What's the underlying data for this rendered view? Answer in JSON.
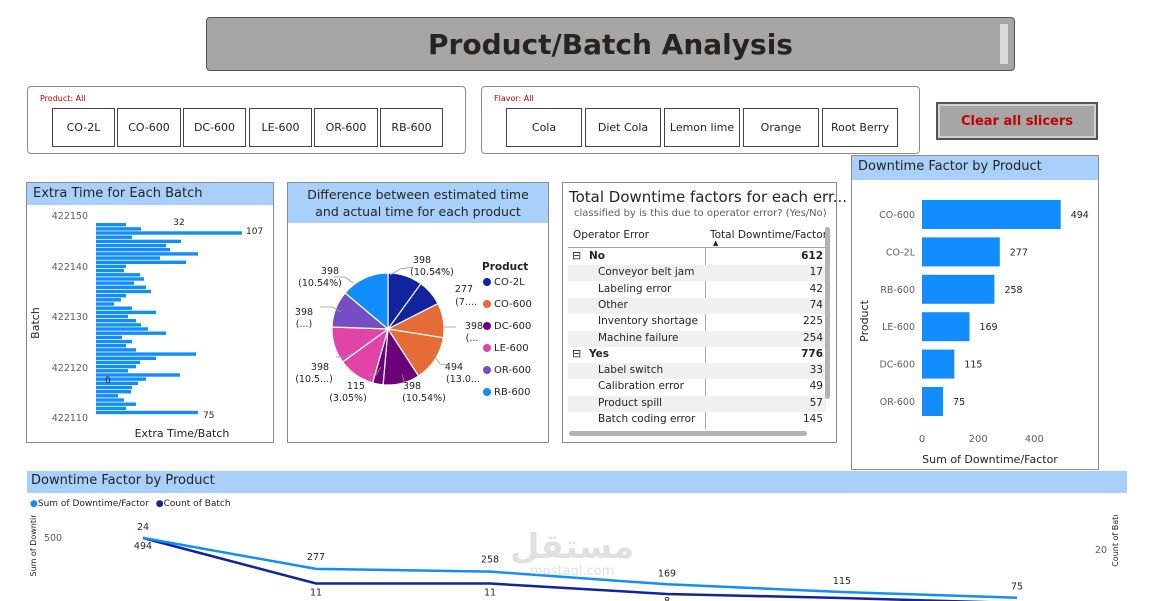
{
  "header": {
    "title": "Product/Batch Analysis"
  },
  "product_slicer": {
    "title": "Product: All",
    "items": [
      "CO-2L",
      "CO-600",
      "DC-600",
      "LE-600",
      "OR-600",
      "RB-600"
    ]
  },
  "flavor_slicer": {
    "title": "Flavor: All",
    "items": [
      "Cola",
      "Diet Cola",
      "Lemon lime",
      "Orange",
      "Root Berry"
    ]
  },
  "clear_button": {
    "label": "Clear all slicers"
  },
  "extra_time_chart": {
    "title": "Extra Time for Each Batch",
    "xlabel": "Extra Time/Batch",
    "ylabel": "Batch",
    "ticks": [
      "422150",
      "422140",
      "422130",
      "422120",
      "422110"
    ],
    "labels": {
      "top_a": "32",
      "top_b": "107",
      "zero": "0",
      "bottom": "75"
    }
  },
  "pie_chart": {
    "title": "Difference between estimated time and actual time for each product",
    "legend_title": "Product",
    "legend": [
      {
        "name": "CO-2L",
        "color": "#12239e"
      },
      {
        "name": "CO-600",
        "color": "#e66c37"
      },
      {
        "name": "DC-600",
        "color": "#6b007b"
      },
      {
        "name": "LE-600",
        "color": "#e044a7"
      },
      {
        "name": "OR-600",
        "color": "#744ec2"
      },
      {
        "name": "RB-600",
        "color": "#118dff"
      }
    ],
    "labels": [
      {
        "v": "398",
        "p": "(10.54%)"
      },
      {
        "v": "277",
        "p": "(7...."
      },
      {
        "v": "398",
        "p": "(..."
      },
      {
        "v": "494",
        "p": "(13.0..."
      },
      {
        "v": "398",
        "p": "(10.54%)"
      },
      {
        "v": "115",
        "p": "(3.05%)"
      },
      {
        "v": "398",
        "p": "(10.5...)"
      },
      {
        "v": "398",
        "p": "(...)"
      },
      {
        "v": "398",
        "p": "(10.54%)"
      }
    ]
  },
  "table": {
    "title": "Total Downtime factors for each err...",
    "subtitle": "classified by is this due to operator error? (Yes/No)",
    "col1": "Operator Error",
    "col2": "Total Downtime/Factor",
    "rows": [
      {
        "label": "No",
        "value": "612",
        "group": true
      },
      {
        "label": "Conveyor belt jam",
        "value": "17"
      },
      {
        "label": "Labeling error",
        "value": "42"
      },
      {
        "label": "Other",
        "value": "74"
      },
      {
        "label": "Inventory shortage",
        "value": "225"
      },
      {
        "label": "Machine failure",
        "value": "254"
      },
      {
        "label": "Yes",
        "value": "776",
        "group": true
      },
      {
        "label": "Label switch",
        "value": "33"
      },
      {
        "label": "Calibration error",
        "value": "49"
      },
      {
        "label": "Product spill",
        "value": "57"
      },
      {
        "label": "Batch coding error",
        "value": "145"
      }
    ],
    "expander": "⊟"
  },
  "chart_data": [
    {
      "type": "bar",
      "title": "Downtime Factor by Product",
      "categories": [
        "CO-600",
        "CO-2L",
        "RB-600",
        "LE-600",
        "DC-600",
        "OR-600"
      ],
      "values": [
        494,
        277,
        258,
        169,
        115,
        75
      ],
      "xlabel": "Sum of Downtime/Factor",
      "ylabel": "Product",
      "xticks": [
        "0",
        "200",
        "400"
      ],
      "xlim": [
        0,
        520
      ],
      "color": "#118dff"
    },
    {
      "type": "line",
      "title": "Downtime Factor by Product",
      "series": [
        {
          "name": "Sum of Downtime/Factor",
          "values": [
            494,
            277,
            258,
            169,
            115,
            75
          ],
          "color": "#118dff"
        },
        {
          "name": "Count of Batch",
          "values": [
            24,
            11,
            11,
            8,
            null,
            null
          ],
          "color": "#12239e"
        }
      ],
      "ylabel_left": "Sum of Downtime...",
      "ylabel_right": "Count of Batch",
      "ytick_left": "500",
      "ytick_right": "20"
    }
  ],
  "watermark": {
    "text": "مستقل",
    "sub": "mostaql.com"
  }
}
